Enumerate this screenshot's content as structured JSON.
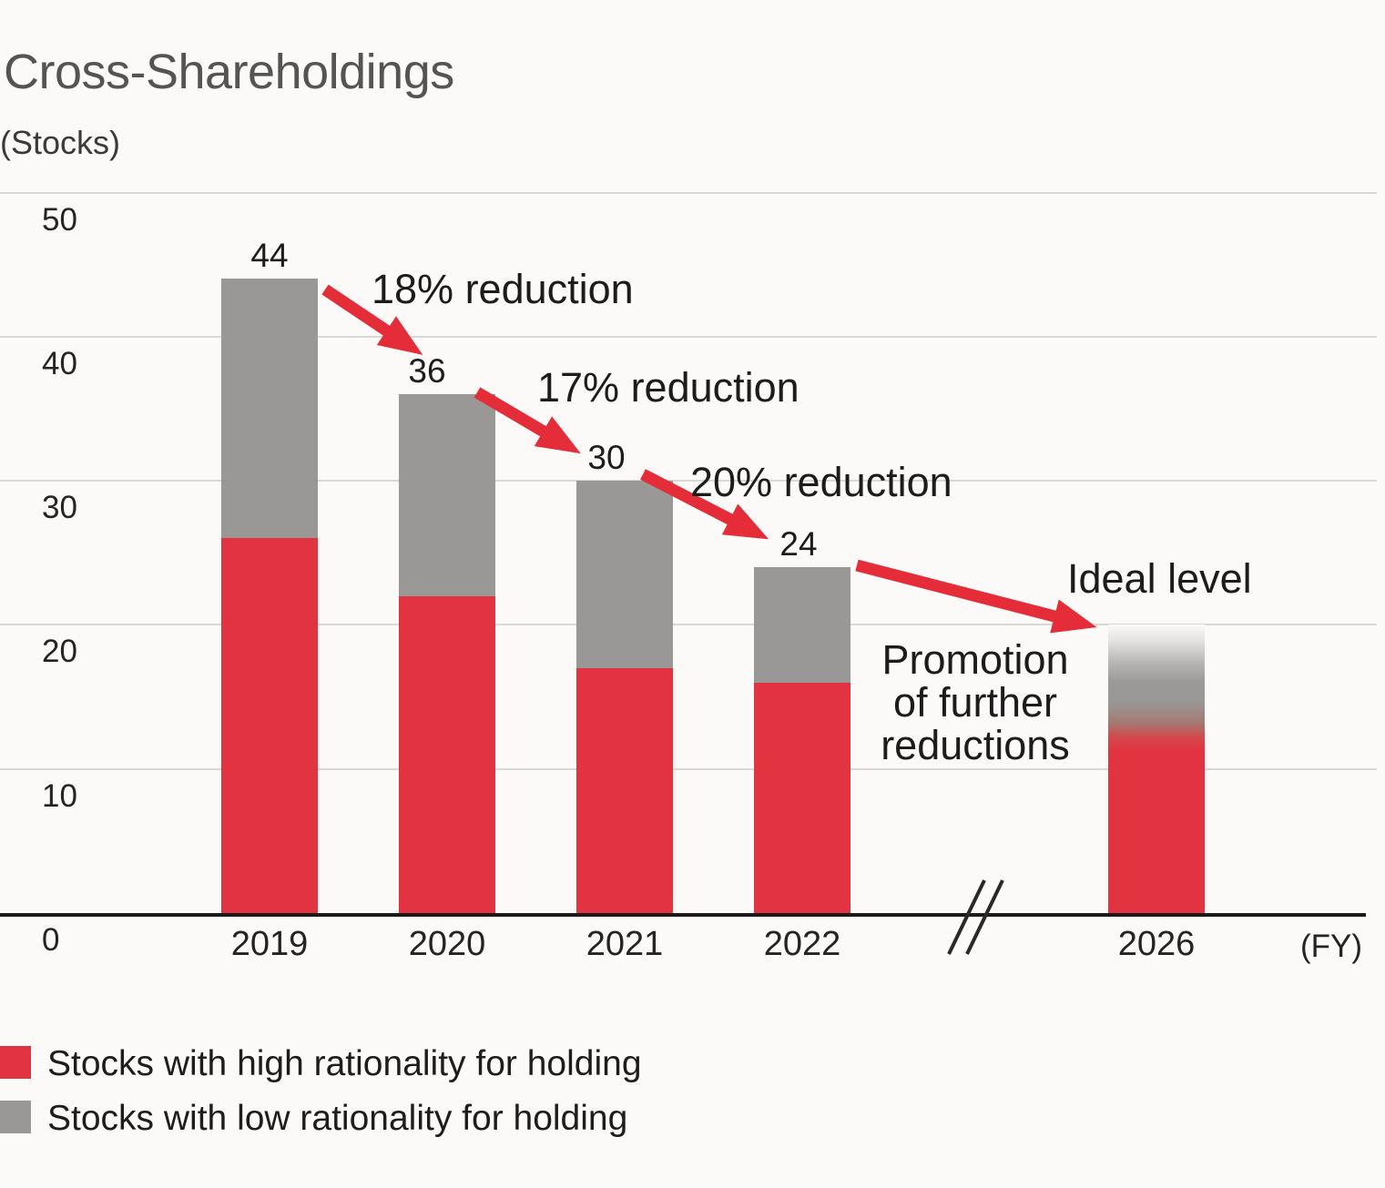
{
  "chart": {
    "title": "Cross-Shareholdings",
    "unit_label": "(Stocks)",
    "fy_label": "(FY)"
  },
  "colors": {
    "red": "#e23340",
    "gray": "#999897",
    "background": "#fbfaf8",
    "gridline": "#d9d8d5",
    "axis": "#1d1b1a"
  },
  "chart_data": {
    "type": "bar",
    "stacked": true,
    "title": "Cross-Shareholdings",
    "ylabel": "(Stocks)",
    "xlabel": "(FY)",
    "ylim": [
      0,
      50
    ],
    "yticks": [
      0,
      10,
      20,
      30,
      40,
      50
    ],
    "grid": "horizontal",
    "axis_break_between": [
      "2022",
      "2026"
    ],
    "categories": [
      "2019",
      "2020",
      "2021",
      "2022",
      "2026"
    ],
    "series": [
      {
        "name": "Stocks with high rationality for holding",
        "color": "#e23340",
        "values": [
          26,
          22,
          17,
          16,
          13
        ]
      },
      {
        "name": "Stocks with low rationality for holding",
        "color": "#999897",
        "values": [
          18,
          14,
          13,
          8,
          7
        ]
      }
    ],
    "totals": [
      44,
      36,
      30,
      24,
      20
    ],
    "total_labels": [
      "44",
      "36",
      "30",
      "24",
      ""
    ],
    "bar_2026_style": "gradient fading from red through gray to white at top (ideal level, approx 20)",
    "annotations": {
      "reduction_18": "18% reduction",
      "reduction_17": "17% reduction",
      "reduction_20": "20% reduction",
      "promotion": "Promotion\nof further\nreductions",
      "ideal_level": "Ideal level"
    }
  },
  "legend": [
    {
      "label": "Stocks with high rationality for holding",
      "color": "#e23340"
    },
    {
      "label": "Stocks with low rationality for holding",
      "color": "#999897"
    }
  ]
}
